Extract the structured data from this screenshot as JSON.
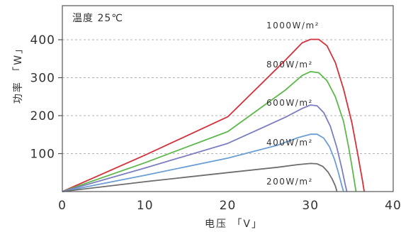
{
  "chart_data": {
    "type": "line",
    "annotation": "温度 25℃",
    "xlabel": "电压 「V」",
    "ylabel": "功率 「W」",
    "xlim": [
      0,
      40
    ],
    "ylim": [
      0,
      400
    ],
    "x_ticks": [
      0,
      10,
      20,
      30,
      40
    ],
    "y_ticks": [
      100,
      200,
      300,
      400
    ],
    "grid": "horizontal dashed",
    "series": [
      {
        "name": "1000W/m²",
        "color": "#d4303a",
        "points": [
          [
            0,
            0
          ],
          [
            10,
            96
          ],
          [
            20,
            197
          ],
          [
            27,
            347
          ],
          [
            29,
            392
          ],
          [
            30,
            401
          ],
          [
            31,
            401
          ],
          [
            32,
            384
          ],
          [
            33,
            340
          ],
          [
            34,
            270
          ],
          [
            35,
            182
          ],
          [
            35.7,
            100
          ],
          [
            36.3,
            27
          ],
          [
            36.5,
            0
          ]
        ]
      },
      {
        "name": "800W/m²",
        "color": "#5cb84a",
        "points": [
          [
            0,
            0
          ],
          [
            10,
            76
          ],
          [
            20,
            158
          ],
          [
            27,
            268
          ],
          [
            29,
            306
          ],
          [
            30,
            316
          ],
          [
            31,
            313
          ],
          [
            32,
            292
          ],
          [
            33,
            250
          ],
          [
            34,
            185
          ],
          [
            34.6,
            118
          ],
          [
            35.1,
            55
          ],
          [
            35.5,
            0
          ]
        ]
      },
      {
        "name": "600W/m²",
        "color": "#7a7ec0",
        "points": [
          [
            0,
            0
          ],
          [
            10,
            62
          ],
          [
            20,
            127
          ],
          [
            27,
            196
          ],
          [
            29,
            219
          ],
          [
            30,
            228
          ],
          [
            30.8,
            226
          ],
          [
            31.6,
            208
          ],
          [
            32.4,
            172
          ],
          [
            33.2,
            115
          ],
          [
            33.8,
            60
          ],
          [
            34.2,
            18
          ],
          [
            34.4,
            0
          ]
        ]
      },
      {
        "name": "400W/m²",
        "color": "#6a9ed4",
        "points": [
          [
            0,
            0
          ],
          [
            10,
            43
          ],
          [
            20,
            88
          ],
          [
            26,
            122
          ],
          [
            28.5,
            142
          ],
          [
            30,
            151
          ],
          [
            30.8,
            151
          ],
          [
            31.6,
            141
          ],
          [
            32.3,
            118
          ],
          [
            32.9,
            85
          ],
          [
            33.4,
            48
          ],
          [
            33.8,
            15
          ],
          [
            34,
            0
          ]
        ]
      },
      {
        "name": "200W/m²",
        "color": "#6e6e6e",
        "points": [
          [
            0,
            0
          ],
          [
            10,
            26
          ],
          [
            20,
            50
          ],
          [
            26,
            64
          ],
          [
            28.5,
            71
          ],
          [
            30,
            74
          ],
          [
            30.8,
            73
          ],
          [
            31.5,
            66
          ],
          [
            32.1,
            52
          ],
          [
            32.6,
            34
          ],
          [
            33,
            15
          ],
          [
            33.2,
            0
          ]
        ]
      }
    ]
  }
}
